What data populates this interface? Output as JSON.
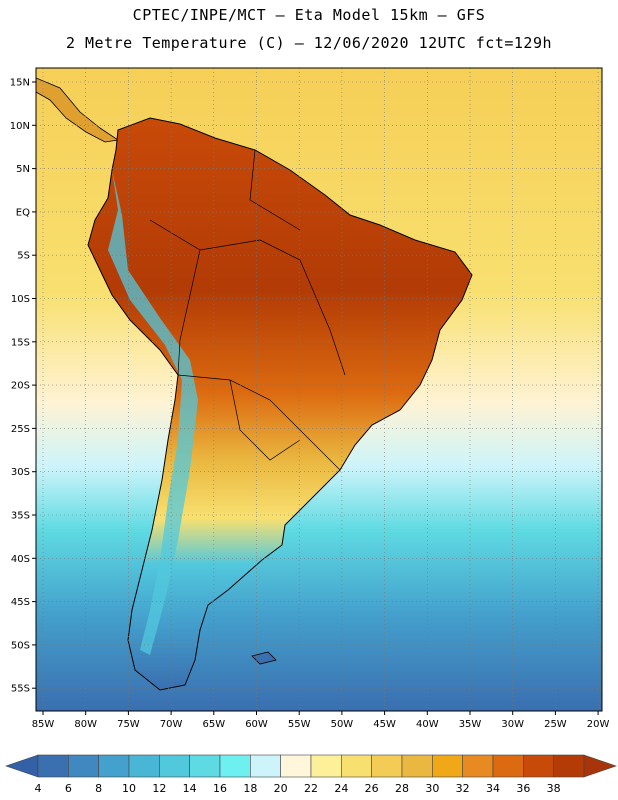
{
  "header": {
    "line1": "CPTEC/INPE/MCT —  Eta Model 15km — GFS",
    "line2": "2 Metre Temperature (C) — 12/06/2020 12UTC fct=129h"
  },
  "map": {
    "lat_labels": [
      "15N",
      "10N",
      "5N",
      "EQ",
      "5S",
      "10S",
      "15S",
      "20S",
      "25S",
      "30S",
      "35S",
      "40S",
      "45S",
      "50S",
      "55S"
    ],
    "lon_labels": [
      "85W",
      "80W",
      "75W",
      "70W",
      "65W",
      "60W",
      "55W",
      "50W",
      "45W",
      "40W",
      "35W",
      "30W",
      "25W",
      "20W"
    ]
  },
  "colorbar": {
    "labels": [
      "4",
      "6",
      "8",
      "10",
      "12",
      "14",
      "16",
      "18",
      "20",
      "22",
      "24",
      "26",
      "28",
      "30",
      "32",
      "34",
      "36",
      "38"
    ],
    "colors": [
      "#3a6fb0",
      "#3f88c0",
      "#44a0cc",
      "#4ab6d6",
      "#52c8dd",
      "#5edae2",
      "#6ff0f0",
      "#cdf4fa",
      "#fff6dc",
      "#fdf09a",
      "#f8e070",
      "#f3cc56",
      "#eab840",
      "#f0a818",
      "#e88a22",
      "#dc6a10",
      "#c84a08",
      "#b23b06"
    ],
    "below_color": "#3460a8",
    "above_color": "#a8350a"
  }
}
